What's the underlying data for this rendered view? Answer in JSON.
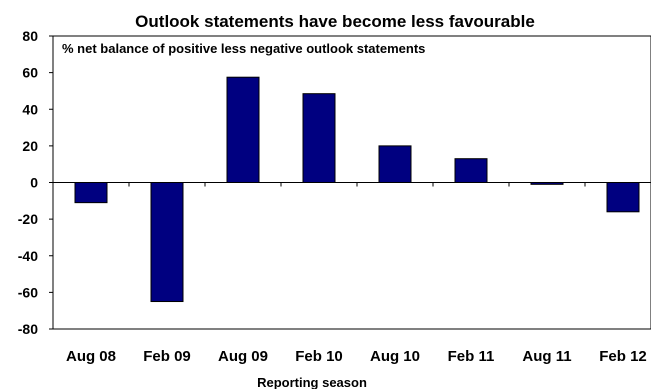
{
  "chart_data": {
    "type": "bar",
    "title": "Outlook statements have become less favourable",
    "annotation": "% net balance of positive less negative outlook statements",
    "xlabel": "Reporting season",
    "ylabel": "",
    "categories": [
      "Aug 08",
      "Feb 09",
      "Aug 09",
      "Feb 10",
      "Aug 10",
      "Feb 11",
      "Aug 11",
      "Feb 12"
    ],
    "values": [
      -11,
      -65,
      57.5,
      48.5,
      20,
      13,
      -1,
      -16
    ],
    "ylim": [
      -80,
      80
    ],
    "yticks": [
      80,
      60,
      40,
      20,
      0,
      -20,
      -40,
      -60,
      -80
    ],
    "grid": false,
    "legend": "none",
    "bar_color": "#000080"
  }
}
